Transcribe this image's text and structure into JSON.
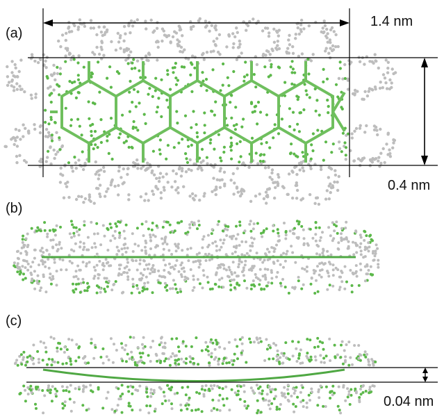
{
  "panels": [
    {
      "label": "(a)"
    },
    {
      "label": "(b)"
    },
    {
      "label": "(c)"
    }
  ],
  "dimensions": {
    "length": "1.4 nm",
    "width": "0.4 nm",
    "deflection": "0.04 nm"
  },
  "colors": {
    "carbon_bond": "#6fbf5e",
    "carbon_dot": "#5cb84a",
    "surface_dot": "#bdbdbd",
    "dimension_line": "#000000"
  }
}
